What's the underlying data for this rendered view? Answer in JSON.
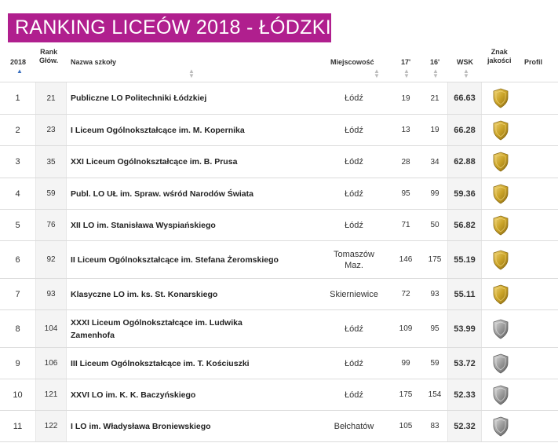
{
  "banner_title": "RANKING LICEÓW 2018 - ŁÓDZKIE",
  "headers": {
    "rank": "2018",
    "rank_glow": "Rank\nGłów.",
    "name": "Nazwa szkoły",
    "city": "Miejscowość",
    "y17": "17'",
    "y16": "16'",
    "wsk": "WSK",
    "badge": "Znak\njakości",
    "profile": "Profil"
  },
  "sort_glyphs": {
    "active": "▲",
    "idle": "▲\n▼"
  },
  "badge_colors": {
    "gold": "#c9a227",
    "silver": "#9a9a9a"
  },
  "rows": [
    {
      "rank": "1",
      "glow": "21",
      "name": "Publiczne LO Politechniki Łódzkiej",
      "city": "Łódź",
      "y17": "19",
      "y16": "21",
      "wsk": "66.63",
      "badge": "gold-shield-icon"
    },
    {
      "rank": "2",
      "glow": "23",
      "name": "I Liceum Ogólnokształcące im. M. Kopernika",
      "city": "Łódź",
      "y17": "13",
      "y16": "19",
      "wsk": "66.28",
      "badge": "gold-shield-icon"
    },
    {
      "rank": "3",
      "glow": "35",
      "name": "XXI Liceum Ogólnokształcące im. B. Prusa",
      "city": "Łódź",
      "y17": "28",
      "y16": "34",
      "wsk": "62.88",
      "badge": "gold-shield-icon"
    },
    {
      "rank": "4",
      "glow": "59",
      "name": "Publ. LO UŁ im. Spraw. wśród Narodów Świata",
      "city": "Łódź",
      "y17": "95",
      "y16": "99",
      "wsk": "59.36",
      "badge": "gold-shield-icon"
    },
    {
      "rank": "5",
      "glow": "76",
      "name": "XII LO im. Stanisława Wyspiańskiego",
      "city": "Łódź",
      "y17": "71",
      "y16": "50",
      "wsk": "56.82",
      "badge": "gold-shield-icon"
    },
    {
      "rank": "6",
      "glow": "92",
      "name": "II Liceum Ogólnokształcące im. Stefana Żeromskiego",
      "city": "Tomaszów\nMaz.",
      "y17": "146",
      "y16": "175",
      "wsk": "55.19",
      "badge": "gold-shield-icon"
    },
    {
      "rank": "7",
      "glow": "93",
      "name": "Klasyczne LO im. ks. St. Konarskiego",
      "city": "Skierniewice",
      "y17": "72",
      "y16": "93",
      "wsk": "55.11",
      "badge": "gold-shield-icon"
    },
    {
      "rank": "8",
      "glow": "104",
      "name": "XXXI Liceum Ogólnokształcące im. Ludwika\nZamenhofa",
      "city": "Łódź",
      "y17": "109",
      "y16": "95",
      "wsk": "53.99",
      "badge": "silver-shield-icon"
    },
    {
      "rank": "9",
      "glow": "106",
      "name": "III Liceum Ogólnokształcące im. T. Kościuszki",
      "city": "Łódź",
      "y17": "99",
      "y16": "59",
      "wsk": "53.72",
      "badge": "silver-shield-icon"
    },
    {
      "rank": "10",
      "glow": "121",
      "name": "XXVI LO im. K. K. Baczyńskiego",
      "city": "Łódź",
      "y17": "175",
      "y16": "154",
      "wsk": "52.33",
      "badge": "silver-shield-icon"
    },
    {
      "rank": "11",
      "glow": "122",
      "name": "I LO im. Władysława Broniewskiego",
      "city": "Bełchatów",
      "y17": "105",
      "y16": "83",
      "wsk": "52.32",
      "badge": "silver-shield-icon"
    }
  ]
}
